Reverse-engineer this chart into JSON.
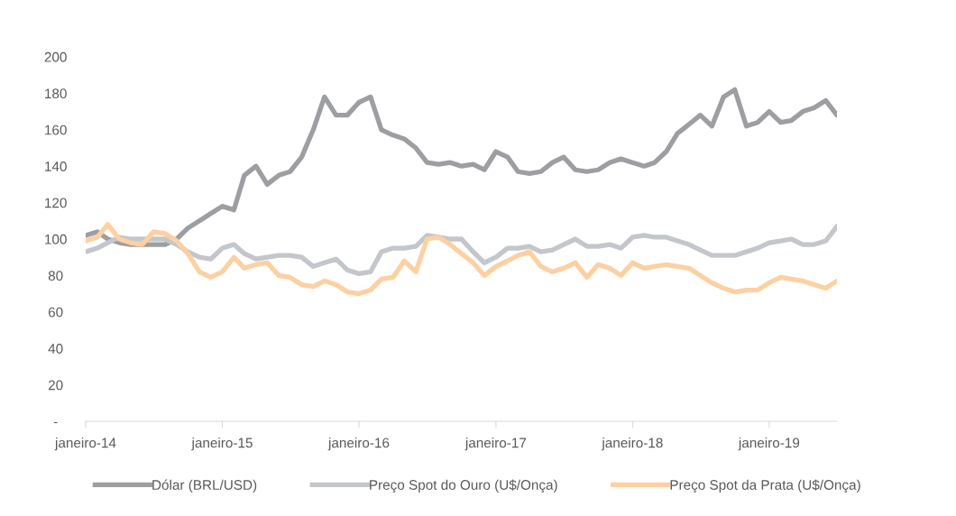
{
  "chart_data": {
    "type": "line",
    "x": [
      "2014-01",
      "2014-02",
      "2014-03",
      "2014-04",
      "2014-05",
      "2014-06",
      "2014-07",
      "2014-08",
      "2014-09",
      "2014-10",
      "2014-11",
      "2014-12",
      "2015-01",
      "2015-02",
      "2015-03",
      "2015-04",
      "2015-05",
      "2015-06",
      "2015-07",
      "2015-08",
      "2015-09",
      "2015-10",
      "2015-11",
      "2015-12",
      "2016-01",
      "2016-02",
      "2016-03",
      "2016-04",
      "2016-05",
      "2016-06",
      "2016-07",
      "2016-08",
      "2016-09",
      "2016-10",
      "2016-11",
      "2016-12",
      "2017-01",
      "2017-02",
      "2017-03",
      "2017-04",
      "2017-05",
      "2017-06",
      "2017-07",
      "2017-08",
      "2017-09",
      "2017-10",
      "2017-11",
      "2017-12",
      "2018-01",
      "2018-02",
      "2018-03",
      "2018-04",
      "2018-05",
      "2018-06",
      "2018-07",
      "2018-08",
      "2018-09",
      "2018-10",
      "2018-11",
      "2018-12",
      "2019-01",
      "2019-02",
      "2019-03",
      "2019-04",
      "2019-05",
      "2019-06",
      "2019-07"
    ],
    "series": [
      {
        "name": "Dólar (BRL/USD)",
        "color": "#9d9ea2",
        "values": [
          102,
          104,
          100,
          98,
          97,
          97,
          97,
          97,
          100,
          106,
          110,
          114,
          118,
          116,
          135,
          140,
          130,
          135,
          137,
          145,
          160,
          178,
          168,
          168,
          175,
          178,
          160,
          157,
          155,
          150,
          142,
          141,
          142,
          140,
          141,
          138,
          148,
          145,
          137,
          136,
          137,
          142,
          145,
          138,
          137,
          138,
          142,
          144,
          142,
          140,
          142,
          148,
          158,
          163,
          168,
          162,
          178,
          182,
          162,
          164,
          170,
          164,
          165,
          170,
          172,
          176,
          168
        ]
      },
      {
        "name": "Preço Spot do Ouro (U$/Onça)",
        "color": "#c3c6ca",
        "values": [
          93,
          95,
          98,
          101,
          100,
          100,
          100,
          100,
          97,
          93,
          90,
          89,
          95,
          97,
          92,
          89,
          90,
          91,
          91,
          90,
          85,
          87,
          89,
          83,
          81,
          82,
          93,
          95,
          95,
          96,
          102,
          101,
          100,
          100,
          93,
          87,
          90,
          95,
          95,
          96,
          93,
          94,
          97,
          100,
          96,
          96,
          97,
          95,
          101,
          102,
          101,
          101,
          99,
          97,
          94,
          91,
          91,
          91,
          93,
          95,
          98,
          99,
          100,
          97,
          97,
          99,
          107
        ]
      },
      {
        "name": "Preço Spot da Prata (U$/Onça)",
        "color": "#fdd0a2",
        "values": [
          99,
          101,
          108,
          100,
          98,
          97,
          104,
          103,
          99,
          92,
          82,
          79,
          82,
          90,
          84,
          86,
          87,
          80,
          79,
          75,
          74,
          77,
          75,
          71,
          70,
          72,
          78,
          79,
          88,
          82,
          100,
          101,
          97,
          92,
          87,
          80,
          85,
          88,
          91,
          93,
          85,
          82,
          84,
          87,
          79,
          86,
          84,
          80,
          87,
          84,
          85,
          86,
          85,
          84,
          80,
          76,
          73,
          71,
          72,
          72,
          76,
          79,
          78,
          77,
          75,
          73,
          77
        ]
      }
    ],
    "xlim": [
      "2014-01",
      "2019-07"
    ],
    "xticks": [
      {
        "value": "2014-01",
        "label": "janeiro-14"
      },
      {
        "value": "2015-01",
        "label": "janeiro-15"
      },
      {
        "value": "2016-01",
        "label": "janeiro-16"
      },
      {
        "value": "2017-01",
        "label": "janeiro-17"
      },
      {
        "value": "2018-01",
        "label": "janeiro-18"
      },
      {
        "value": "2019-01",
        "label": "janeiro-19"
      }
    ],
    "ylim": [
      0,
      200
    ],
    "yticks": [
      {
        "value": 0,
        "label": "-"
      },
      20,
      40,
      60,
      80,
      100,
      120,
      140,
      160,
      180,
      200
    ],
    "grid": false,
    "legend": "bottom",
    "marker": "none",
    "line_style": "solid"
  }
}
